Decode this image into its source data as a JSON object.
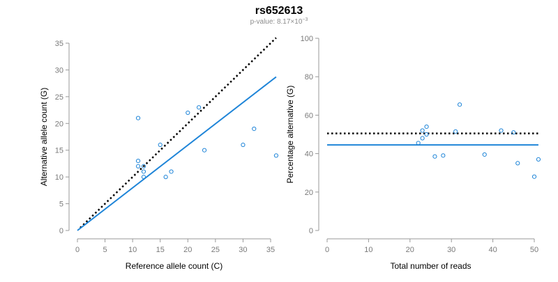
{
  "figure": {
    "title": "rs652613",
    "subtitle_prefix": "p-value: 8.17×10",
    "subtitle_exponent": "−3"
  },
  "colors": {
    "points": "#1f85d8",
    "fit_line": "#1f85d8",
    "reference_line": "#000000"
  },
  "chart_data": [
    {
      "type": "scatter",
      "xlabel": "Reference allele count (C)",
      "ylabel": "Alternative allele count (G)",
      "xlim": [
        0,
        35
      ],
      "ylim": [
        0,
        35
      ],
      "xticks": [
        0,
        5,
        10,
        15,
        20,
        25,
        30,
        35
      ],
      "yticks": [
        0,
        5,
        10,
        15,
        20,
        25,
        30,
        35
      ],
      "grid": false,
      "points": [
        {
          "x": 11,
          "y": 21
        },
        {
          "x": 11,
          "y": 13
        },
        {
          "x": 11,
          "y": 12
        },
        {
          "x": 12,
          "y": 12
        },
        {
          "x": 12,
          "y": 11
        },
        {
          "x": 12,
          "y": 10
        },
        {
          "x": 15,
          "y": 16
        },
        {
          "x": 16,
          "y": 10
        },
        {
          "x": 17,
          "y": 11
        },
        {
          "x": 20,
          "y": 22
        },
        {
          "x": 22,
          "y": 23
        },
        {
          "x": 23,
          "y": 15
        },
        {
          "x": 30,
          "y": 16
        },
        {
          "x": 32,
          "y": 19
        },
        {
          "x": 36,
          "y": 14
        }
      ],
      "reference_line": {
        "style": "dotted",
        "from": [
          0.5,
          0.5
        ],
        "to": [
          36,
          36
        ]
      },
      "fit_line": {
        "style": "solid",
        "from": [
          0,
          0
        ],
        "to": [
          36,
          28.7
        ]
      }
    },
    {
      "type": "scatter",
      "xlabel": "Total number of reads",
      "ylabel": "Percentage alternative (G)",
      "xlim": [
        0,
        50
      ],
      "ylim": [
        0,
        100
      ],
      "xticks": [
        0,
        10,
        20,
        30,
        40,
        50
      ],
      "yticks": [
        0,
        20,
        40,
        60,
        80,
        100
      ],
      "grid": false,
      "points": [
        {
          "x": 22,
          "y": 45.5
        },
        {
          "x": 23,
          "y": 48
        },
        {
          "x": 23,
          "y": 52
        },
        {
          "x": 24,
          "y": 50
        },
        {
          "x": 24,
          "y": 54
        },
        {
          "x": 26,
          "y": 38.5
        },
        {
          "x": 28,
          "y": 39
        },
        {
          "x": 31,
          "y": 51.5
        },
        {
          "x": 32,
          "y": 65.5
        },
        {
          "x": 38,
          "y": 39.5
        },
        {
          "x": 42,
          "y": 52
        },
        {
          "x": 45,
          "y": 51
        },
        {
          "x": 46,
          "y": 35
        },
        {
          "x": 50,
          "y": 28
        },
        {
          "x": 51,
          "y": 37
        }
      ],
      "reference_line": {
        "style": "dotted",
        "from": [
          0,
          50.5
        ],
        "to": [
          51,
          50.5
        ]
      },
      "fit_line": {
        "style": "solid",
        "from": [
          0,
          44.5
        ],
        "to": [
          51,
          44.5
        ]
      }
    }
  ]
}
